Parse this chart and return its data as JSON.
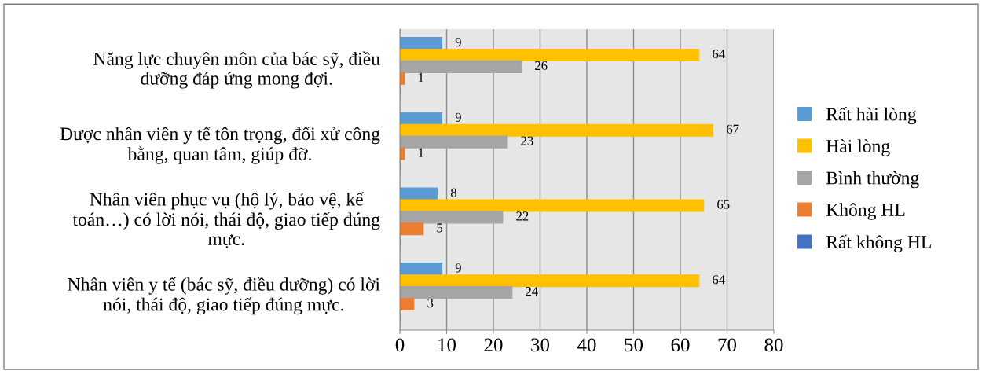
{
  "chart_data": {
    "type": "bar",
    "orientation": "horizontal",
    "categories": [
      "Năng lực chuyên môn của bác sỹ, điều\ndưỡng đáp ứng mong đợi.",
      "Được nhân viên y tế tôn trọng, đối xử công\nbằng, quan tâm, giúp đỡ.",
      "Nhân viên phục vụ (hộ lý, bảo vệ, kế\ntoán…) có lời nói, thái độ, giao tiếp đúng\nmực.",
      "Nhân viên y tế (bác sỹ, điều dưỡng) có lời\nnói, thái độ, giao tiếp đúng mực."
    ],
    "series": [
      {
        "name": "Rất hài lòng",
        "color": "#5b9bd5",
        "values": [
          9,
          9,
          8,
          9
        ],
        "value_labels": [
          "9",
          "9",
          "8",
          "9"
        ]
      },
      {
        "name": "Hài lòng",
        "color": "#ffc000",
        "values": [
          64,
          67,
          65,
          64
        ],
        "value_labels": [
          "64",
          "67",
          "65",
          "64"
        ]
      },
      {
        "name": "Bình thường",
        "color": "#a5a5a5",
        "values": [
          26,
          23,
          22,
          24
        ],
        "value_labels": [
          "26",
          "23",
          "22",
          "24"
        ]
      },
      {
        "name": "Không HL",
        "color": "#ed7d31",
        "values": [
          1,
          1,
          5,
          3
        ],
        "value_labels": [
          "1",
          "1",
          "5",
          "3"
        ]
      },
      {
        "name": "Rất không HL",
        "color": "#4472c4",
        "values": [
          0,
          0,
          0,
          0
        ],
        "value_labels": [
          null,
          null,
          null,
          null
        ]
      }
    ],
    "xlim": [
      0,
      80
    ],
    "xticks": [
      0,
      10,
      20,
      30,
      40,
      50,
      60,
      70,
      80
    ],
    "grid": "x",
    "legend": "right"
  }
}
